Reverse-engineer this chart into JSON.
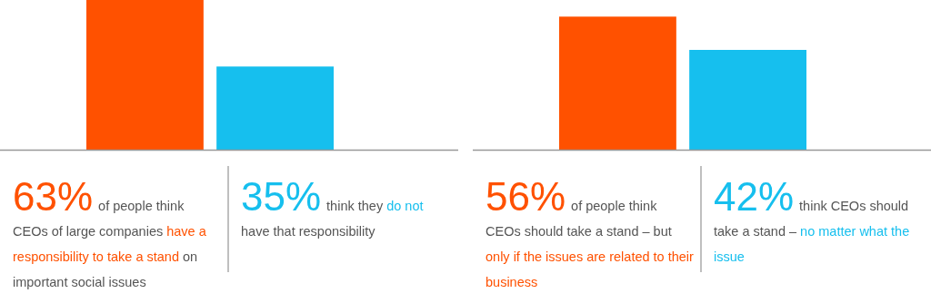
{
  "chart_data": [
    {
      "type": "bar",
      "categories": [
        null,
        null
      ],
      "values": [
        63,
        35
      ],
      "colors": [
        "#ff5100",
        "#16bfee"
      ],
      "value_labels": [
        "63%",
        "35%"
      ],
      "annotations": [
        "of people think CEOs of large companies",
        "have a responsibility to take a stand",
        "on important social issues",
        "think they",
        "do not",
        "have that responsibility"
      ]
    },
    {
      "type": "bar",
      "categories": [
        null,
        null
      ],
      "values": [
        56,
        42
      ],
      "colors": [
        "#ff5100",
        "#16bfee"
      ],
      "value_labels": [
        "56%",
        "42%"
      ],
      "annotations": [
        "of people think CEOs should take a stand – but",
        "only if the issues are related to their business",
        "think CEOs should take a stand –",
        "no matter what the issue"
      ]
    }
  ]
}
